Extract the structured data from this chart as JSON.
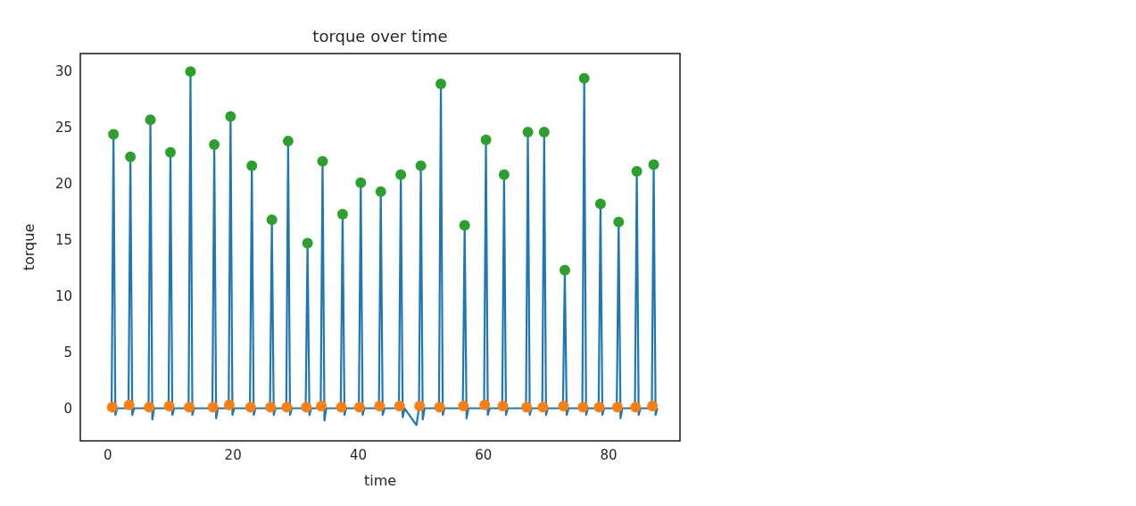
{
  "chart_data": {
    "type": "line",
    "title": "torque over time",
    "xlabel": "time",
    "ylabel": "torque",
    "xlim": [
      -4.4,
      91.4
    ],
    "xticks": [
      0,
      20,
      40,
      60,
      80
    ],
    "ylim": [
      -2.9,
      31.6
    ],
    "yticks": [
      0,
      5,
      10,
      15,
      20,
      25,
      30
    ],
    "grid": false,
    "series": [
      {
        "color": "#1f77b4",
        "line_style": "solid",
        "x": [
          0,
          0.6,
          0.9,
          1.2,
          1.5,
          3.3,
          3.6,
          3.9,
          4.2,
          6.5,
          6.8,
          7.1,
          7.4,
          9.7,
          10.0,
          10.3,
          10.6,
          12.9,
          13.2,
          13.5,
          13.8,
          16.7,
          17.0,
          17.3,
          17.6,
          19.3,
          19.6,
          19.9,
          20.2,
          22.7,
          23.0,
          23.3,
          23.6,
          25.9,
          26.2,
          26.5,
          26.8,
          28.5,
          28.8,
          29.1,
          29.4,
          31.6,
          31.9,
          32.2,
          32.5,
          34.0,
          34.3,
          34.6,
          34.9,
          37.2,
          37.5,
          37.8,
          38.1,
          40.1,
          40.4,
          40.7,
          41.0,
          43.3,
          43.6,
          43.9,
          44.2,
          46.5,
          46.8,
          47.1,
          47.4,
          49.3,
          49.7,
          50.0,
          50.3,
          50.6,
          52.9,
          53.2,
          53.5,
          53.8,
          56.7,
          57.0,
          57.3,
          57.6,
          60.1,
          60.4,
          60.7,
          61.0,
          63.0,
          63.3,
          63.6,
          63.9,
          66.8,
          67.1,
          67.4,
          67.7,
          69.4,
          69.7,
          70.0,
          70.3,
          72.7,
          73.0,
          73.3,
          73.6,
          75.8,
          76.1,
          76.4,
          76.7,
          78.4,
          78.7,
          79.0,
          79.3,
          81.3,
          81.6,
          81.9,
          82.2,
          84.2,
          84.5,
          84.8,
          85.1,
          86.9,
          87.2,
          87.5,
          87.8
        ],
        "values": [
          0,
          0,
          24.4,
          -0.6,
          0,
          0,
          22.4,
          -0.6,
          0,
          0,
          25.7,
          -1.0,
          0,
          0,
          22.8,
          -0.6,
          0,
          0,
          30.0,
          -0.6,
          0,
          0,
          23.5,
          -0.9,
          0,
          0,
          26.0,
          -0.6,
          0,
          0,
          21.6,
          -0.6,
          0,
          0,
          16.8,
          -0.6,
          0,
          0,
          23.8,
          -0.6,
          0,
          0,
          14.7,
          -0.6,
          0,
          0,
          22.0,
          -1.1,
          0,
          0,
          17.3,
          -0.6,
          0,
          0,
          20.1,
          -0.6,
          0,
          0,
          19.3,
          -0.6,
          0,
          0,
          20.8,
          -0.8,
          0,
          -1.5,
          0,
          21.6,
          -1.0,
          0,
          0,
          28.9,
          -0.6,
          0,
          0,
          16.3,
          -0.9,
          0,
          0,
          23.9,
          -0.6,
          0,
          0,
          20.8,
          -0.6,
          0,
          0,
          24.6,
          -0.6,
          0,
          0,
          24.6,
          -0.6,
          0,
          0,
          12.3,
          -0.6,
          0,
          0,
          29.4,
          -0.6,
          0,
          0,
          18.2,
          -0.6,
          0,
          0,
          16.6,
          -0.9,
          0,
          0,
          21.1,
          -0.6,
          0,
          0,
          21.7,
          -0.6,
          0
        ]
      },
      {
        "type": "scatter",
        "color": "#ff7f0e",
        "marker": "circle",
        "x": [
          0.7,
          3.4,
          6.6,
          9.8,
          13.0,
          16.8,
          19.4,
          22.8,
          26.0,
          28.6,
          31.7,
          34.1,
          37.3,
          40.2,
          43.4,
          46.6,
          49.8,
          53.0,
          56.8,
          60.2,
          63.1,
          66.9,
          69.5,
          72.8,
          75.9,
          78.5,
          81.4,
          84.3,
          87.0
        ],
        "values": [
          0.1,
          0.3,
          0.1,
          0.2,
          0.1,
          0.1,
          0.3,
          0.1,
          0.1,
          0.1,
          0.1,
          0.2,
          0.1,
          0.1,
          0.2,
          0.2,
          0.2,
          0.1,
          0.2,
          0.3,
          0.2,
          0.1,
          0.1,
          0.2,
          0.1,
          0.1,
          0.1,
          0.1,
          0.2
        ]
      },
      {
        "type": "scatter",
        "color": "#2ca02c",
        "marker": "circle",
        "x": [
          0.9,
          3.6,
          6.8,
          10.0,
          13.2,
          17.0,
          19.6,
          23.0,
          26.2,
          28.8,
          31.9,
          34.3,
          37.5,
          40.4,
          43.6,
          46.8,
          50.0,
          53.2,
          57.0,
          60.4,
          63.3,
          67.1,
          69.7,
          73.0,
          76.1,
          78.7,
          81.6,
          84.5,
          87.2
        ],
        "values": [
          24.4,
          22.4,
          25.7,
          22.8,
          30.0,
          23.5,
          26.0,
          21.6,
          16.8,
          23.8,
          14.7,
          22.0,
          17.3,
          20.1,
          19.3,
          20.8,
          21.6,
          28.9,
          16.3,
          23.9,
          20.8,
          24.6,
          24.6,
          12.3,
          29.4,
          18.2,
          16.6,
          21.1,
          21.7
        ]
      }
    ]
  }
}
